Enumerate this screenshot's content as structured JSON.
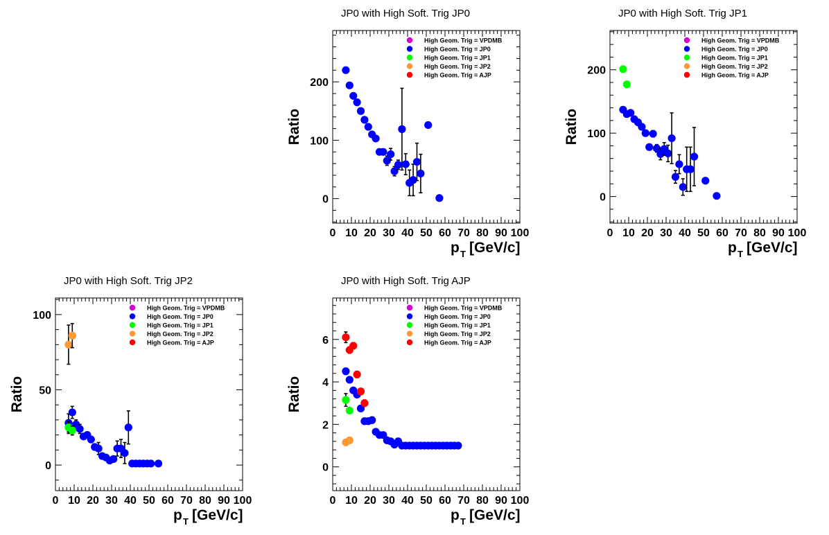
{
  "legend_entries": [
    {
      "name": "High Geom. Trig = VPDMB",
      "color": "#d400d4"
    },
    {
      "name": "High Geom. Trig = JP0",
      "color": "#0000ff"
    },
    {
      "name": "High Geom. Trig = JP1",
      "color": "#00ff00"
    },
    {
      "name": "High Geom. Trig = JP2",
      "color": "#ff9933"
    },
    {
      "name": "High Geom. Trig = AJP",
      "color": "#ff0000"
    }
  ],
  "chart_data": [
    {
      "type": "scatter",
      "title": "JP0 with High Soft. Trig JP0",
      "xlabel_main": "p",
      "xlabel_sub": "T",
      "xlabel_unit": "[GeV/c]",
      "ylabel": "Ratio",
      "xlim": [
        0,
        100
      ],
      "ylim": [
        -42,
        288
      ],
      "xticks": [
        "0",
        "10",
        "20",
        "30",
        "40",
        "50",
        "60",
        "70",
        "80",
        "90",
        "100"
      ],
      "yticks": [
        {
          "v": 0,
          "label": "0"
        },
        {
          "v": 100,
          "label": "100"
        },
        {
          "v": 200,
          "label": "200"
        }
      ],
      "series": [
        {
          "name": "High Geom. Trig = JP0",
          "color": "#0000ff",
          "points": [
            {
              "x": 7,
              "y": 220,
              "e": 3
            },
            {
              "x": 9,
              "y": 194,
              "e": 3
            },
            {
              "x": 11,
              "y": 176,
              "e": 3
            },
            {
              "x": 13,
              "y": 165,
              "e": 3
            },
            {
              "x": 15,
              "y": 150,
              "e": 3
            },
            {
              "x": 17,
              "y": 135,
              "e": 3
            },
            {
              "x": 19,
              "y": 123,
              "e": 3
            },
            {
              "x": 21,
              "y": 110,
              "e": 3
            },
            {
              "x": 23,
              "y": 103,
              "e": 3
            },
            {
              "x": 25,
              "y": 80,
              "e": 4
            },
            {
              "x": 27,
              "y": 80,
              "e": 5
            },
            {
              "x": 29,
              "y": 65,
              "e": 8
            },
            {
              "x": 31,
              "y": 76,
              "e": 10
            },
            {
              "x": 33,
              "y": 47,
              "e": 8
            },
            {
              "x": 35,
              "y": 58,
              "e": 8
            },
            {
              "x": 37,
              "y": 119,
              "e": 70
            },
            {
              "x": 39,
              "y": 59,
              "e": 18
            },
            {
              "x": 41,
              "y": 27,
              "e": 22
            },
            {
              "x": 43,
              "y": 32,
              "e": 27
            },
            {
              "x": 45,
              "y": 63,
              "e": 32
            },
            {
              "x": 47,
              "y": 43,
              "e": 33
            },
            {
              "x": 51,
              "y": 126,
              "e": 0
            },
            {
              "x": 57,
              "y": 1,
              "e": 0
            }
          ]
        }
      ]
    },
    {
      "type": "scatter",
      "title": "JP0 with High Soft. Trig JP1",
      "xlabel_main": "p",
      "xlabel_sub": "T",
      "xlabel_unit": "[GeV/c]",
      "ylabel": "Ratio",
      "xlim": [
        0,
        100
      ],
      "ylim": [
        -42,
        262
      ],
      "xticks": [
        "0",
        "10",
        "20",
        "30",
        "40",
        "50",
        "60",
        "70",
        "80",
        "90",
        "100"
      ],
      "yticks": [
        {
          "v": 0,
          "label": "0"
        },
        {
          "v": 100,
          "label": "100"
        },
        {
          "v": 200,
          "label": "200"
        }
      ],
      "series": [
        {
          "name": "High Geom. Trig = JP1",
          "color": "#00ff00",
          "points": [
            {
              "x": 7,
              "y": 201,
              "e": 2
            },
            {
              "x": 9,
              "y": 177,
              "e": 2
            }
          ]
        },
        {
          "name": "High Geom. Trig = JP0",
          "color": "#0000ff",
          "points": [
            {
              "x": 7,
              "y": 137,
              "e": 3
            },
            {
              "x": 9,
              "y": 130,
              "e": 3
            },
            {
              "x": 11,
              "y": 132,
              "e": 3
            },
            {
              "x": 13,
              "y": 122,
              "e": 3
            },
            {
              "x": 15,
              "y": 117,
              "e": 3
            },
            {
              "x": 17,
              "y": 110,
              "e": 3
            },
            {
              "x": 19,
              "y": 100,
              "e": 3
            },
            {
              "x": 21,
              "y": 78,
              "e": 4
            },
            {
              "x": 23,
              "y": 99,
              "e": 5
            },
            {
              "x": 25,
              "y": 76,
              "e": 6
            },
            {
              "x": 27,
              "y": 67,
              "e": 9
            },
            {
              "x": 29,
              "y": 75,
              "e": 10
            },
            {
              "x": 31,
              "y": 68,
              "e": 13
            },
            {
              "x": 33,
              "y": 92,
              "e": 40
            },
            {
              "x": 35,
              "y": 31,
              "e": 10
            },
            {
              "x": 37,
              "y": 51,
              "e": 15
            },
            {
              "x": 39,
              "y": 15,
              "e": 13
            },
            {
              "x": 41,
              "y": 43,
              "e": 35
            },
            {
              "x": 43,
              "y": 43,
              "e": 35
            },
            {
              "x": 45,
              "y": 63,
              "e": 46
            },
            {
              "x": 51,
              "y": 25,
              "e": 0
            },
            {
              "x": 57,
              "y": 1,
              "e": 0
            }
          ]
        }
      ]
    },
    {
      "type": "scatter",
      "title": "JP0 with High Soft. Trig JP2",
      "xlabel_main": "p",
      "xlabel_sub": "T",
      "xlabel_unit": "[GeV/c]",
      "ylabel": "Ratio",
      "xlim": [
        0,
        100
      ],
      "ylim": [
        -17,
        111
      ],
      "xticks": [
        "0",
        "10",
        "20",
        "30",
        "40",
        "50",
        "60",
        "70",
        "80",
        "90",
        "100"
      ],
      "yticks": [
        {
          "v": 0,
          "label": "0"
        },
        {
          "v": 50,
          "label": "50"
        },
        {
          "v": 100,
          "label": "100"
        }
      ],
      "series": [
        {
          "name": "High Geom. Trig = JP2",
          "color": "#ff9933",
          "points": [
            {
              "x": 7,
              "y": 80,
              "e": 13
            },
            {
              "x": 9,
              "y": 86,
              "e": 8
            }
          ]
        },
        {
          "name": "High Geom. Trig = JP0",
          "color": "#0000ff",
          "points": [
            {
              "x": 7,
              "y": 28,
              "e": 6
            },
            {
              "x": 9,
              "y": 35,
              "e": 4
            },
            {
              "x": 11,
              "y": 27,
              "e": 3
            },
            {
              "x": 13,
              "y": 24,
              "e": 3
            },
            {
              "x": 15,
              "y": 19,
              "e": 2
            },
            {
              "x": 17,
              "y": 20,
              "e": 2
            },
            {
              "x": 19,
              "y": 17,
              "e": 2
            },
            {
              "x": 21,
              "y": 12,
              "e": 2
            },
            {
              "x": 23,
              "y": 11,
              "e": 4
            },
            {
              "x": 25,
              "y": 6,
              "e": 2
            },
            {
              "x": 27,
              "y": 5,
              "e": 1
            },
            {
              "x": 29,
              "y": 3,
              "e": 1
            },
            {
              "x": 31,
              "y": 4,
              "e": 1
            },
            {
              "x": 33,
              "y": 11,
              "e": 5
            },
            {
              "x": 35,
              "y": 11,
              "e": 6
            },
            {
              "x": 37,
              "y": 8,
              "e": 7
            },
            {
              "x": 39,
              "y": 25,
              "e": 11
            },
            {
              "x": 41,
              "y": 1,
              "e": 0
            },
            {
              "x": 43,
              "y": 1,
              "e": 0
            },
            {
              "x": 45,
              "y": 1,
              "e": 0
            },
            {
              "x": 47,
              "y": 1,
              "e": 0
            },
            {
              "x": 49,
              "y": 1,
              "e": 0
            },
            {
              "x": 51,
              "y": 1,
              "e": 0
            },
            {
              "x": 55,
              "y": 1,
              "e": 0
            }
          ]
        },
        {
          "name": "High Geom. Trig = JP1",
          "color": "#00ff00",
          "points": [
            {
              "x": 7,
              "y": 25,
              "e": 4
            },
            {
              "x": 9,
              "y": 23,
              "e": 3
            }
          ]
        }
      ]
    },
    {
      "type": "scatter",
      "title": "JP0 with High Soft. Trig AJP",
      "xlabel_main": "p",
      "xlabel_sub": "T",
      "xlabel_unit": "[GeV/c]",
      "ylabel": "Ratio",
      "xlim": [
        0,
        100
      ],
      "ylim": [
        -1.12,
        7.95
      ],
      "xticks": [
        "0",
        "10",
        "20",
        "30",
        "40",
        "50",
        "60",
        "70",
        "80",
        "90",
        "100"
      ],
      "yticks": [
        {
          "v": 0,
          "label": "0"
        },
        {
          "v": 2,
          "label": "2"
        },
        {
          "v": 4,
          "label": "4"
        },
        {
          "v": 6,
          "label": "6"
        }
      ],
      "series": [
        {
          "name": "High Geom. Trig = JP0",
          "color": "#0000ff",
          "points": [
            {
              "x": 7,
              "y": 4.5,
              "e": 0.15
            },
            {
              "x": 9,
              "y": 4.1,
              "e": 0.1
            },
            {
              "x": 11,
              "y": 3.6,
              "e": 0.1
            },
            {
              "x": 13,
              "y": 3.4,
              "e": 0.1
            },
            {
              "x": 15,
              "y": 2.75,
              "e": 0.1
            },
            {
              "x": 17,
              "y": 2.15,
              "e": 0.1
            },
            {
              "x": 19,
              "y": 2.15,
              "e": 0.1
            },
            {
              "x": 21,
              "y": 2.2,
              "e": 0.15
            },
            {
              "x": 23,
              "y": 1.65,
              "e": 0.1
            },
            {
              "x": 25,
              "y": 1.5,
              "e": 0.1
            },
            {
              "x": 27,
              "y": 1.5,
              "e": 0.1
            },
            {
              "x": 29,
              "y": 1.25,
              "e": 0.1
            },
            {
              "x": 31,
              "y": 1.2,
              "e": 0.1
            },
            {
              "x": 33,
              "y": 1.05,
              "e": 0.1
            },
            {
              "x": 35,
              "y": 1.2,
              "e": 0.15
            },
            {
              "x": 37,
              "y": 1,
              "e": 0
            },
            {
              "x": 39,
              "y": 1,
              "e": 0
            },
            {
              "x": 41,
              "y": 1,
              "e": 0
            },
            {
              "x": 43,
              "y": 1,
              "e": 0
            },
            {
              "x": 45,
              "y": 1,
              "e": 0
            },
            {
              "x": 47,
              "y": 1,
              "e": 0
            },
            {
              "x": 49,
              "y": 1,
              "e": 0
            },
            {
              "x": 51,
              "y": 1,
              "e": 0
            },
            {
              "x": 53,
              "y": 1,
              "e": 0
            },
            {
              "x": 55,
              "y": 1,
              "e": 0
            },
            {
              "x": 57,
              "y": 1,
              "e": 0
            },
            {
              "x": 59,
              "y": 1,
              "e": 0
            },
            {
              "x": 61,
              "y": 1,
              "e": 0
            },
            {
              "x": 63,
              "y": 1,
              "e": 0
            },
            {
              "x": 65,
              "y": 1,
              "e": 0
            },
            {
              "x": 67,
              "y": 1,
              "e": 0
            }
          ]
        },
        {
          "name": "High Geom. Trig = JP1",
          "color": "#00ff00",
          "points": [
            {
              "x": 7,
              "y": 3.15,
              "e": 0.3
            },
            {
              "x": 9,
              "y": 2.65,
              "e": 0.1
            }
          ]
        },
        {
          "name": "High Geom. Trig = JP2",
          "color": "#ff9933",
          "points": [
            {
              "x": 7,
              "y": 1.15,
              "e": 0.05
            },
            {
              "x": 9,
              "y": 1.25,
              "e": 0.05
            }
          ]
        },
        {
          "name": "High Geom. Trig = AJP",
          "color": "#ff0000",
          "points": [
            {
              "x": 7,
              "y": 6.1,
              "e": 0.25
            },
            {
              "x": 9,
              "y": 5.5,
              "e": 0.15
            },
            {
              "x": 11,
              "y": 5.7,
              "e": 0.15
            },
            {
              "x": 13,
              "y": 4.35,
              "e": 0.15
            },
            {
              "x": 15,
              "y": 3.55,
              "e": 0.15
            },
            {
              "x": 17,
              "y": 3.0,
              "e": 0.15
            }
          ]
        }
      ]
    }
  ]
}
